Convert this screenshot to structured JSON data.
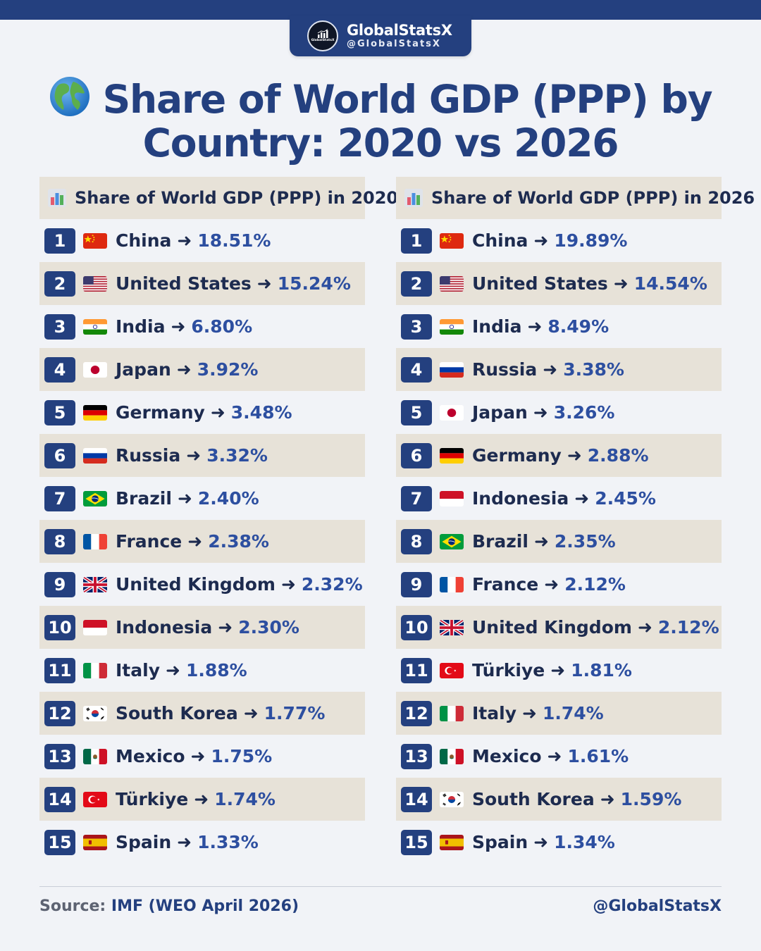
{
  "brand": {
    "name": "GlobalStatsX",
    "handle": "@GlobalStatsX",
    "logo_text": "GlobalStatsX"
  },
  "title": {
    "line1": "Share of World GDP (PPP) by",
    "line2": "Country: 2020 vs 2026",
    "icon": "globe-icon"
  },
  "columns": [
    {
      "header": "Share of World GDP (PPP) in 2020",
      "icon": "bar-chart-icon",
      "rows": [
        {
          "rank": "1",
          "flag": "cn",
          "country": "China",
          "value": "18.51%"
        },
        {
          "rank": "2",
          "flag": "us",
          "country": "United States",
          "value": "15.24%"
        },
        {
          "rank": "3",
          "flag": "in",
          "country": "India",
          "value": "6.80%"
        },
        {
          "rank": "4",
          "flag": "jp",
          "country": "Japan",
          "value": "3.92%"
        },
        {
          "rank": "5",
          "flag": "de",
          "country": "Germany",
          "value": "3.48%"
        },
        {
          "rank": "6",
          "flag": "ru",
          "country": "Russia",
          "value": "3.32%"
        },
        {
          "rank": "7",
          "flag": "br",
          "country": "Brazil",
          "value": "2.40%"
        },
        {
          "rank": "8",
          "flag": "fr",
          "country": "France",
          "value": "2.38%"
        },
        {
          "rank": "9",
          "flag": "gb",
          "country": "United Kingdom",
          "value": "2.32%"
        },
        {
          "rank": "10",
          "flag": "id",
          "country": "Indonesia",
          "value": "2.30%"
        },
        {
          "rank": "11",
          "flag": "it",
          "country": "Italy",
          "value": "1.88%"
        },
        {
          "rank": "12",
          "flag": "kr",
          "country": "South Korea",
          "value": "1.77%"
        },
        {
          "rank": "13",
          "flag": "mx",
          "country": "Mexico",
          "value": "1.75%"
        },
        {
          "rank": "14",
          "flag": "tr",
          "country": "Türkiye",
          "value": "1.74%"
        },
        {
          "rank": "15",
          "flag": "es",
          "country": "Spain",
          "value": "1.33%"
        }
      ]
    },
    {
      "header": "Share of World GDP (PPP) in 2026",
      "icon": "bar-chart-icon",
      "rows": [
        {
          "rank": "1",
          "flag": "cn",
          "country": "China",
          "value": "19.89%"
        },
        {
          "rank": "2",
          "flag": "us",
          "country": "United States",
          "value": "14.54%"
        },
        {
          "rank": "3",
          "flag": "in",
          "country": "India",
          "value": "8.49%"
        },
        {
          "rank": "4",
          "flag": "ru",
          "country": "Russia",
          "value": "3.38%"
        },
        {
          "rank": "5",
          "flag": "jp",
          "country": "Japan",
          "value": "3.26%"
        },
        {
          "rank": "6",
          "flag": "de",
          "country": "Germany",
          "value": "2.88%"
        },
        {
          "rank": "7",
          "flag": "id",
          "country": "Indonesia",
          "value": "2.45%"
        },
        {
          "rank": "8",
          "flag": "br",
          "country": "Brazil",
          "value": "2.35%"
        },
        {
          "rank": "9",
          "flag": "fr",
          "country": "France",
          "value": "2.12%"
        },
        {
          "rank": "10",
          "flag": "gb",
          "country": "United Kingdom",
          "value": "2.12%"
        },
        {
          "rank": "11",
          "flag": "tr",
          "country": "Türkiye",
          "value": "1.81%"
        },
        {
          "rank": "12",
          "flag": "it",
          "country": "Italy",
          "value": "1.74%"
        },
        {
          "rank": "13",
          "flag": "mx",
          "country": "Mexico",
          "value": "1.61%"
        },
        {
          "rank": "14",
          "flag": "kr",
          "country": "South Korea",
          "value": "1.59%"
        },
        {
          "rank": "15",
          "flag": "es",
          "country": "Spain",
          "value": "1.34%"
        }
      ]
    }
  ],
  "arrow": "➜",
  "footer": {
    "source_label": "Source:",
    "source_value": "IMF (WEO April 2026)",
    "handle": "@GlobalStatsX"
  },
  "colors": {
    "primary": "#24407f",
    "value": "#2d4fa0",
    "stripe": "#e7e2d8",
    "background": "#f1f3f7"
  }
}
